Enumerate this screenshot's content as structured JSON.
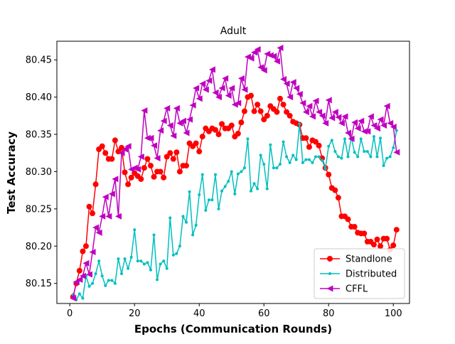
{
  "chart_data": {
    "type": "line",
    "title": "Adult",
    "xlabel": "Epochs (Communication Rounds)",
    "ylabel": "Test Accuracy",
    "xlim": [
      -4,
      105
    ],
    "ylim": [
      80.123,
      80.475
    ],
    "x_ticks": [
      0,
      20,
      40,
      60,
      80,
      100
    ],
    "y_ticks": [
      80.15,
      80.2,
      80.25,
      80.3,
      80.35,
      80.4,
      80.45
    ],
    "x_tick_labels": [
      "0",
      "20",
      "40",
      "60",
      "80",
      "100"
    ],
    "y_tick_labels": [
      "80.15",
      "80.20",
      "80.25",
      "80.30",
      "80.35",
      "80.40",
      "80.45"
    ],
    "grid": false,
    "legend_position": "lower-right",
    "series": [
      {
        "name": "Standlone",
        "color": "#ff0000",
        "marker": "circle",
        "values": [
          80.132,
          80.15,
          80.167,
          80.193,
          80.2,
          80.253,
          80.244,
          80.283,
          80.33,
          80.334,
          80.325,
          80.317,
          80.317,
          80.342,
          80.327,
          80.332,
          80.299,
          80.283,
          80.292,
          80.298,
          80.294,
          80.29,
          80.305,
          80.317,
          80.308,
          80.293,
          80.3,
          80.3,
          80.292,
          80.32,
          80.325,
          80.317,
          80.326,
          80.3,
          80.308,
          80.308,
          80.338,
          80.334,
          80.338,
          80.327,
          80.347,
          80.358,
          80.354,
          80.358,
          80.356,
          80.35,
          80.364,
          80.358,
          80.358,
          80.362,
          80.347,
          80.351,
          80.366,
          80.381,
          80.4,
          80.402,
          80.381,
          80.39,
          80.381,
          80.37,
          80.375,
          80.388,
          80.384,
          80.38,
          80.398,
          80.39,
          80.38,
          80.375,
          80.367,
          80.365,
          80.363,
          80.345,
          80.345,
          80.333,
          80.342,
          80.34,
          80.335,
          80.318,
          80.305,
          80.296,
          80.278,
          80.275,
          80.265,
          80.24,
          80.24,
          80.236,
          80.226,
          80.226,
          80.218,
          80.217,
          80.217,
          80.206,
          80.206,
          80.202,
          80.209,
          80.2,
          80.21,
          80.21,
          80.195,
          80.201,
          80.222
        ]
      },
      {
        "name": "Distributed",
        "color": "#00bfbf",
        "marker": "dot",
        "values": [
          80.135,
          80.128,
          80.136,
          80.13,
          80.16,
          80.146,
          80.15,
          80.163,
          80.18,
          80.16,
          80.147,
          80.154,
          80.154,
          80.15,
          80.183,
          80.163,
          80.183,
          80.17,
          80.185,
          80.222,
          80.18,
          80.18,
          80.176,
          80.178,
          80.168,
          80.215,
          80.155,
          80.176,
          80.18,
          80.17,
          80.238,
          80.188,
          80.19,
          80.2,
          80.24,
          80.232,
          80.273,
          80.215,
          80.228,
          80.269,
          80.296,
          80.248,
          80.262,
          80.262,
          80.296,
          80.25,
          80.274,
          80.28,
          80.287,
          80.3,
          80.27,
          80.297,
          80.3,
          80.305,
          80.344,
          80.274,
          80.284,
          80.277,
          80.322,
          80.31,
          80.277,
          80.336,
          80.305,
          80.305,
          80.31,
          80.34,
          80.32,
          80.312,
          80.322,
          80.316,
          80.364,
          80.312,
          80.316,
          80.316,
          80.312,
          80.32,
          80.32,
          80.315,
          80.304,
          80.334,
          80.342,
          80.327,
          80.32,
          80.318,
          80.344,
          80.32,
          80.346,
          80.326,
          80.32,
          80.344,
          80.327,
          80.327,
          80.32,
          80.347,
          80.32,
          80.345,
          80.308,
          80.318,
          80.32,
          80.332,
          80.355
        ]
      },
      {
        "name": "CFFL",
        "color": "#bf00bf",
        "marker": "triangle-left",
        "values": [
          80.13,
          80.152,
          80.155,
          80.16,
          80.177,
          80.162,
          80.192,
          80.225,
          80.218,
          80.24,
          80.266,
          80.24,
          80.27,
          80.29,
          80.24,
          80.325,
          80.33,
          80.334,
          80.303,
          80.305,
          80.303,
          80.32,
          80.382,
          80.345,
          80.345,
          80.335,
          80.318,
          80.355,
          80.368,
          80.385,
          80.362,
          80.348,
          80.385,
          80.365,
          80.368,
          80.352,
          80.37,
          80.389,
          80.412,
          80.398,
          80.418,
          80.41,
          80.422,
          80.437,
          80.406,
          80.4,
          80.412,
          80.425,
          80.402,
          80.412,
          80.39,
          80.392,
          80.425,
          80.41,
          80.454,
          80.452,
          80.46,
          80.464,
          80.44,
          80.436,
          80.458,
          80.456,
          80.455,
          80.448,
          80.466,
          80.424,
          80.418,
          80.4,
          80.42,
          80.412,
          80.404,
          80.392,
          80.38,
          80.388,
          80.374,
          80.395,
          80.38,
          80.375,
          80.365,
          80.396,
          80.372,
          80.38,
          80.373,
          80.365,
          80.374,
          80.352,
          80.344,
          80.366,
          80.358,
          80.368,
          80.354,
          80.354,
          80.374,
          80.362,
          80.358,
          80.37,
          80.362,
          80.388,
          80.365,
          80.36,
          80.326
        ]
      }
    ]
  }
}
